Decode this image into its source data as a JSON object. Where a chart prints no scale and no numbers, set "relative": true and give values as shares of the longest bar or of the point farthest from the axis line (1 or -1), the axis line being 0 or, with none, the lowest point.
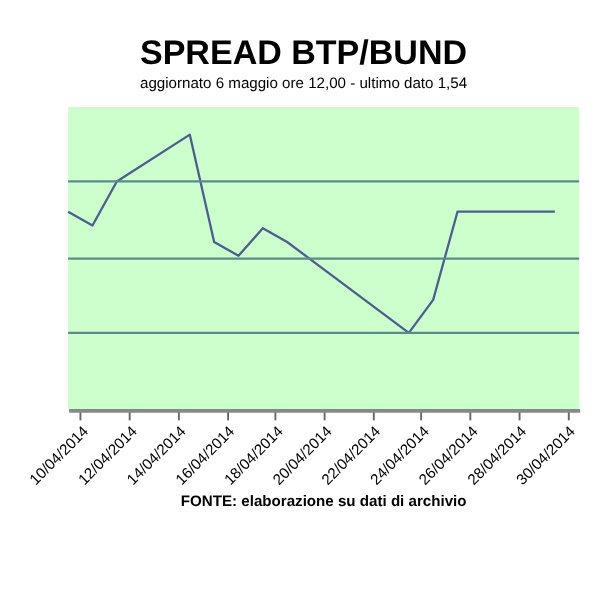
{
  "chart_data": {
    "type": "line",
    "title": "SPREAD BTP/BUND",
    "subtitle": "aggiornato 6 maggio ore 12,00 - ultimo dato 1,54",
    "relative": true,
    "x": [
      "2014-04-09T12:00",
      "2014-04-10T12:00",
      "2014-04-11T12:00",
      "2014-04-14T12:00",
      "2014-04-15T12:00",
      "2014-04-16T12:00",
      "2014-04-17T12:00",
      "2014-04-18T12:00",
      "2014-04-23T12:00",
      "2014-04-24T12:00",
      "2014-04-25T12:00",
      "2014-04-29T12:00"
    ],
    "series": [
      {
        "color": "#4a5f8f",
        "values": [
          0.72,
          0.67,
          0.83,
          1,
          0.61,
          0.56,
          0.66,
          0.61,
          0.28,
          0.4,
          0.72,
          0.72
        ]
      }
    ],
    "xlim": [
      "2014-04-09T12:00",
      "2014-04-30T12:00"
    ],
    "xticks": [
      {
        "value": "2014-04-10",
        "label": "10/04/2014"
      },
      {
        "value": "2014-04-12",
        "label": "12/04/2014"
      },
      {
        "value": "2014-04-14",
        "label": "14/04/2014"
      },
      {
        "value": "2014-04-16",
        "label": "16/04/2014"
      },
      {
        "value": "2014-04-18",
        "label": "18/04/2014"
      },
      {
        "value": "2014-04-20",
        "label": "20/04/2014"
      },
      {
        "value": "2014-04-22",
        "label": "22/04/2014"
      },
      {
        "value": "2014-04-24",
        "label": "24/04/2014"
      },
      {
        "value": "2014-04-26",
        "label": "26/04/2014"
      },
      {
        "value": "2014-04-28",
        "label": "28/04/2014"
      },
      {
        "value": "2014-04-30",
        "label": "30/04/2014"
      }
    ],
    "ref_lines": [
      {
        "axis": "y",
        "value": 0.28,
        "color": "#5b8c8c"
      },
      {
        "axis": "y",
        "value": 0.55,
        "color": "#5b8c8c"
      },
      {
        "axis": "y",
        "value": 0.83,
        "color": "#5b8c8c"
      }
    ],
    "marker": "none",
    "line_style": "solid",
    "annotations": [
      "FONTE: elaborazione su dati di archivio"
    ]
  }
}
